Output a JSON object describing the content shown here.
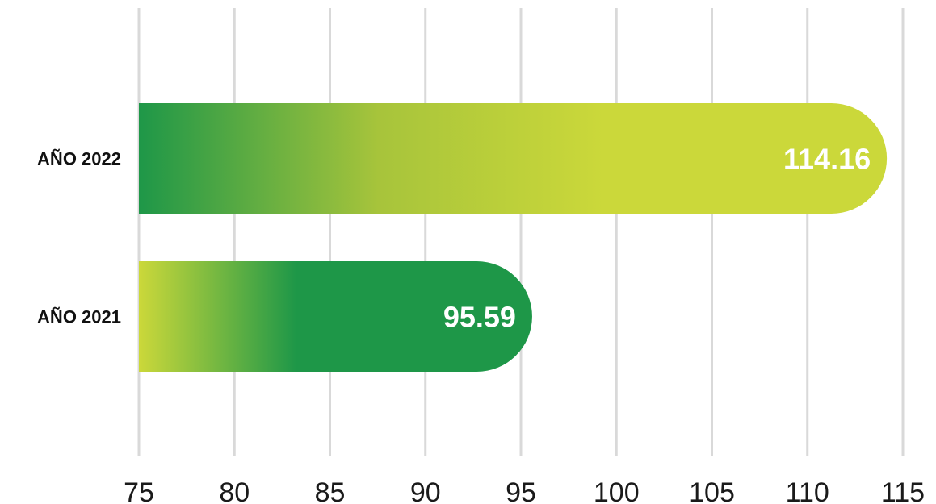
{
  "chart_data": {
    "type": "bar",
    "orientation": "horizontal",
    "categories": [
      "AÑO 2022",
      "AÑO 2021"
    ],
    "values": [
      114.16,
      95.59
    ],
    "value_labels": [
      "114.16",
      "95.59"
    ],
    "xlim": [
      75,
      115
    ],
    "x_ticks": [
      75,
      80,
      85,
      90,
      95,
      100,
      105,
      110,
      115
    ],
    "x_tick_labels": [
      "75",
      "80",
      "85",
      "90",
      "95",
      "100",
      "105",
      "110",
      "115"
    ],
    "grid": "vertical",
    "title": "",
    "xlabel": "",
    "ylabel": "",
    "colors": {
      "green": "#1e9748",
      "lime": "#cbd83a",
      "grid": "#d9d9d9",
      "label": "#111111",
      "value_text": "#ffffff"
    },
    "gradients": [
      {
        "stops": [
          "#1e9748",
          "#a7c43b",
          "#cbd83a",
          "#cbd83a"
        ]
      },
      {
        "stops": [
          "#cbd83a",
          "#1e9748",
          "#1e9748"
        ]
      }
    ]
  }
}
